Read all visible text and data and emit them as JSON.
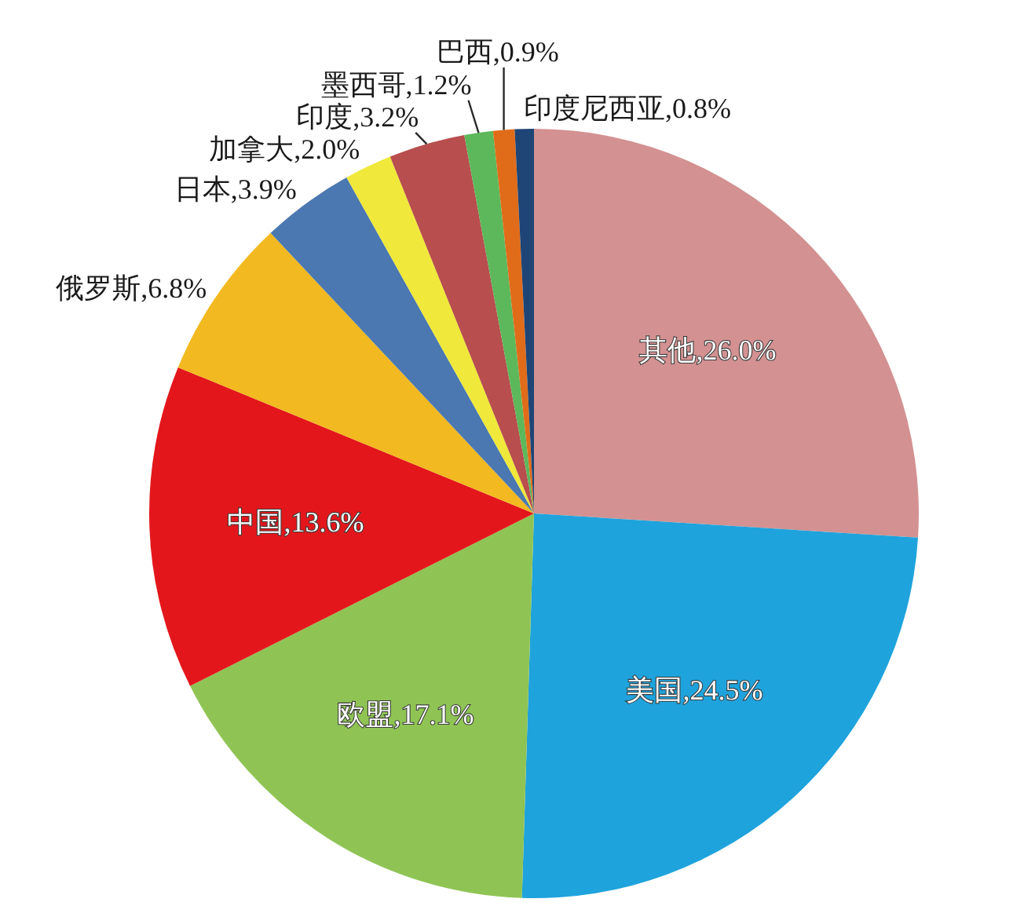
{
  "chart_data": {
    "type": "pie",
    "categories": [
      "其他",
      "美国",
      "欧盟",
      "中国",
      "俄罗斯",
      "日本",
      "加拿大",
      "印度",
      "墨西哥",
      "巴西",
      "印度尼西亚"
    ],
    "values": [
      26.0,
      24.5,
      17.1,
      13.6,
      6.8,
      3.9,
      2.0,
      3.2,
      1.2,
      0.9,
      0.8
    ],
    "value_labels": [
      "26.0%",
      "24.5%",
      "17.1%",
      "13.6%",
      "6.8%",
      "3.9%",
      "2.0%",
      "3.2%",
      "1.2%",
      "0.9%",
      "0.8%"
    ],
    "colors": [
      "#d39191",
      "#1fa3dc",
      "#8fc454",
      "#e3171b",
      "#f2b920",
      "#4b78b0",
      "#f0e83a",
      "#b84e4e",
      "#5cb85a",
      "#e06c1a",
      "#1e4576"
    ]
  }
}
